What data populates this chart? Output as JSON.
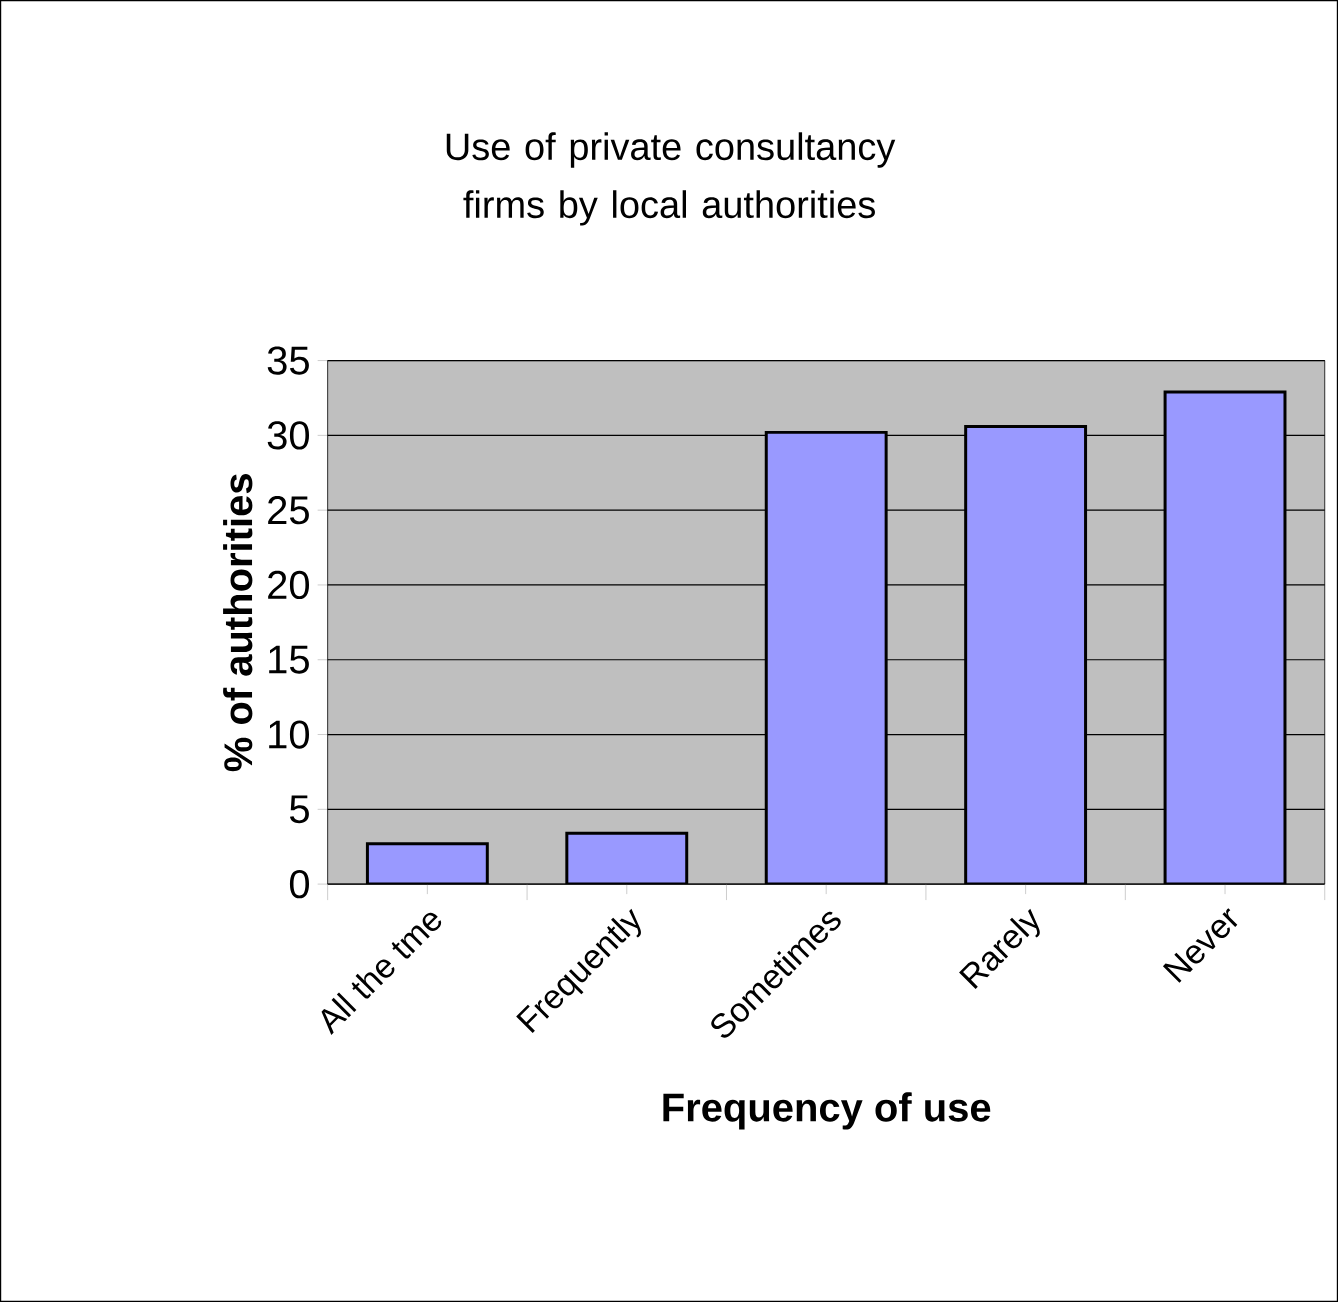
{
  "chart_data": {
    "type": "bar",
    "title": "Use of private consultancy firms by local authorities",
    "xlabel": "Frequency of use",
    "ylabel": "% of authorities",
    "categories": [
      "All the tme",
      "Frequently",
      "Sometimes",
      "Rarely",
      "Never"
    ],
    "values": [
      2.7,
      3.4,
      30.2,
      30.6,
      32.9
    ],
    "color": "#9999ff",
    "ylim": [
      0,
      35
    ],
    "yticks": [
      0,
      5,
      10,
      15,
      20,
      25,
      30,
      35
    ],
    "grid": "y"
  }
}
